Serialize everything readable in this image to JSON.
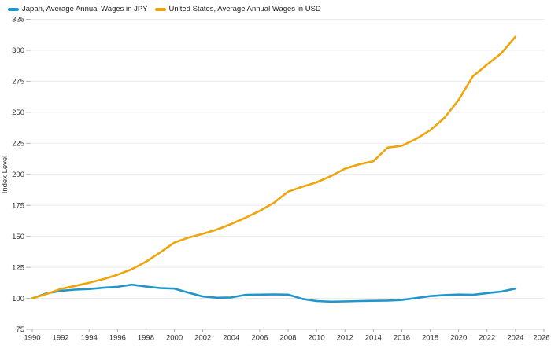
{
  "legend": {
    "items": [
      {
        "id": "japan",
        "label": "Japan, Average Annual Wages in JPY",
        "color": "#2196CB"
      },
      {
        "id": "us",
        "label": "United States, Average Annual Wages in USD",
        "color": "#F0A40C"
      }
    ]
  },
  "chart_data": {
    "type": "line",
    "title": "",
    "xlabel": "",
    "ylabel": "Index Level",
    "grid": "horizontal",
    "legend_position": "top-left",
    "x_axis": {
      "min": 1990,
      "max": 2026,
      "tick_step": 2,
      "tick_labels": [
        "1990",
        "1992",
        "1994",
        "1996",
        "1998",
        "2000",
        "2002",
        "2004",
        "2006",
        "2008",
        "2010",
        "2012",
        "2014",
        "2016",
        "2018",
        "2020",
        "2022",
        "2024",
        "2026"
      ]
    },
    "y_axis": {
      "min": 75,
      "max": 325,
      "tick_step": 25,
      "label": "Index Level",
      "tick_labels": [
        "75",
        "100",
        "125",
        "150",
        "175",
        "200",
        "225",
        "250",
        "275",
        "300",
        "325"
      ]
    },
    "x": [
      1990,
      1991,
      1992,
      1993,
      1994,
      1995,
      1996,
      1997,
      1998,
      1999,
      2000,
      2001,
      2002,
      2003,
      2004,
      2005,
      2006,
      2007,
      2008,
      2009,
      2010,
      2011,
      2012,
      2013,
      2014,
      2015,
      2016,
      2017,
      2018,
      2019,
      2020,
      2021,
      2022,
      2023,
      2024
    ],
    "series": [
      {
        "id": "japan",
        "name": "Japan, Average Annual Wages in JPY",
        "color": "#2196CB",
        "values": [
          100,
          104,
          106,
          107,
          107.5,
          108.5,
          109.3,
          111,
          109.5,
          108.3,
          107.8,
          104.5,
          101.5,
          100.5,
          100.7,
          102.8,
          103,
          103.2,
          103,
          99.5,
          97.8,
          97.3,
          97.5,
          97.8,
          98,
          98.2,
          98.7,
          100.2,
          101.8,
          102.6,
          103.1,
          102.8,
          104.2,
          105.4,
          107.8
        ]
      },
      {
        "id": "us",
        "name": "United States, Average Annual Wages in USD",
        "color": "#F0A40C",
        "values": [
          100,
          103.5,
          107.5,
          110,
          112.5,
          115.5,
          119,
          123.5,
          129.5,
          137,
          145,
          149,
          152,
          155.5,
          160,
          165,
          170.5,
          177,
          186,
          190,
          193.5,
          198.5,
          204.5,
          208,
          210.5,
          221.5,
          223,
          228.5,
          235.5,
          245.5,
          260,
          279,
          288.5,
          297.5,
          311
        ]
      }
    ]
  }
}
